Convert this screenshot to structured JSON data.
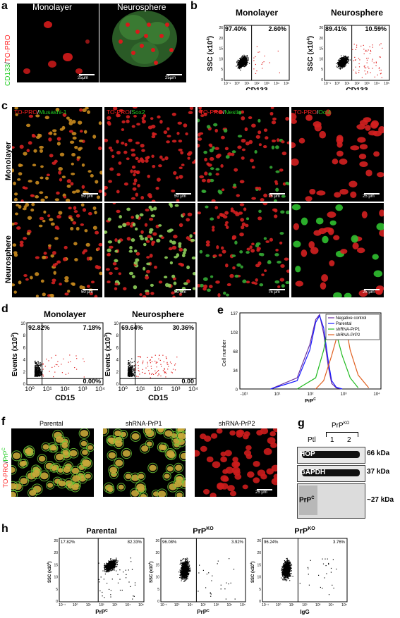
{
  "panel_labels": {
    "a": "a",
    "b": "b",
    "c": "c",
    "d": "d",
    "e": "e",
    "f": "f",
    "g": "g",
    "h": "h"
  },
  "panel_a": {
    "titles": [
      "Monolayer",
      "Neurosphere"
    ],
    "stain_green": "CD133",
    "stain_sep": "/",
    "stain_red": "TO-PRO",
    "scale_bars": [
      "25μm",
      "25μm"
    ]
  },
  "panel_b": {
    "ylabel_main": "SSC (x10",
    "ylabel_sup": "4",
    "ylabel_end": ")",
    "xlabel": "CD133",
    "plots": [
      {
        "title": "Monolayer",
        "left_pct": "97.40%",
        "right_pct": "2.60%"
      },
      {
        "title": "Neurosphere",
        "left_pct": "89.41%",
        "right_pct": "10.59%"
      }
    ],
    "yticks": [
      "26",
      "20",
      "15",
      "10",
      "5",
      "0"
    ],
    "xticks": [
      "10⁻¹",
      "10⁰",
      "10¹",
      "10²",
      "10³",
      "10⁴",
      "10⁵"
    ]
  },
  "panel_c": {
    "row_labels": [
      "Monolayer",
      "Neurosphere"
    ],
    "columns": [
      {
        "red": "TO-PRO",
        "sep": "/",
        "green": "Musashi-1",
        "bars": [
          "50 μm",
          "50 μm"
        ]
      },
      {
        "red": "TO-PRO",
        "sep": "/",
        "green": "Sox2",
        "bars": [
          "50 μm",
          "50 μm"
        ]
      },
      {
        "red": "TO-PRO",
        "sep": "/",
        "green": "Nestin",
        "bars": [
          "75 μm",
          "75 μm"
        ]
      },
      {
        "red": "TO-PRO",
        "sep": "/",
        "green": "Oct4",
        "bars": [
          "25 μm",
          "25 μm"
        ]
      }
    ]
  },
  "panel_d": {
    "ylabel_main": "Events (x10",
    "ylabel_sup": "3",
    "ylabel_end": ")",
    "xlabel": "CD15",
    "plots": [
      {
        "title": "Monolayer",
        "ul": "92.82%",
        "ur": "7.18%",
        "lr": "0.00%"
      },
      {
        "title": "Neurosphere",
        "ul": "69.64%",
        "ur": "30.36%",
        "lr": "0.00"
      }
    ],
    "yticks": [
      "10",
      "8",
      "6",
      "4",
      "2",
      "0"
    ],
    "xticks": [
      "10⁰",
      "10¹",
      "10²",
      "10³",
      "10⁴"
    ]
  },
  "panel_e": {
    "ylabel": "Cell number",
    "xlabel": "PrP",
    "xlabel_sup": "C",
    "yticks": [
      "137",
      "103",
      "68",
      "34",
      "0"
    ],
    "xticks": [
      "-10¹",
      "10¹",
      "10²",
      "10³",
      "10⁴"
    ],
    "legend": [
      "Negative control",
      "Parental",
      "shRNA-PrP1",
      "shRNA-PrP2"
    ],
    "colors": [
      "#6a2fa0",
      "#1a1aff",
      "#ff2020",
      "#22bb22",
      "#cc3333"
    ]
  },
  "panel_f": {
    "titles": [
      "Parental",
      "shRNA-PrP1",
      "shRNA-PrP2"
    ],
    "stain_red": "TO-PRO",
    "stain_sep": "/",
    "stain_green": "PrP",
    "stain_sup": "C",
    "scale_bar": "25 μm"
  },
  "panel_g": {
    "header": "PrP",
    "header_sup": "KO",
    "lanes": [
      "Ptl",
      "1",
      "2"
    ],
    "bands": [
      {
        "name": "HOP",
        "size": "66 kDa"
      },
      {
        "name": "GAPDH",
        "size": "37 kDa"
      },
      {
        "name": "PrP",
        "sup": "C",
        "size": "~27 kDa"
      }
    ]
  },
  "panel_h": {
    "ylabel_main": "SSC (x10",
    "ylabel_sup": "4",
    "ylabel_end": ")",
    "plots": [
      {
        "title": "Parental",
        "title_sup": "",
        "left_pct": "17.82%",
        "right_pct": "82.33%",
        "xlabel": "PrP",
        "xlabel_sup": "C"
      },
      {
        "title": "PrP",
        "title_sup": "KO",
        "left_pct": "96.08%",
        "right_pct": "3.92%",
        "xlabel": "PrP",
        "xlabel_sup": "C"
      },
      {
        "title": "PrP",
        "title_sup": "KO",
        "left_pct": "96.24%",
        "right_pct": "3.76%",
        "xlabel": "IgG",
        "xlabel_sup": ""
      }
    ],
    "yticks": [
      "26",
      "20",
      "15",
      "10",
      "5",
      "0"
    ],
    "xticks": [
      "10⁻¹",
      "10⁰",
      "10¹",
      "10²",
      "10³",
      "10⁴",
      "10⁵"
    ]
  },
  "chart_data": [
    {
      "type": "scatter",
      "panel": "b",
      "title": "Monolayer",
      "xlabel": "CD133",
      "ylabel": "SSC (x10^4)",
      "quadrant_percentages": {
        "left": 97.4,
        "right": 2.6
      },
      "ylim": [
        0,
        26
      ]
    },
    {
      "type": "scatter",
      "panel": "b",
      "title": "Neurosphere",
      "xlabel": "CD133",
      "ylabel": "SSC (x10^4)",
      "quadrant_percentages": {
        "left": 89.41,
        "right": 10.59
      },
      "ylim": [
        0,
        26
      ]
    },
    {
      "type": "scatter",
      "panel": "d",
      "title": "Monolayer",
      "xlabel": "CD15",
      "ylabel": "Events (x10^3)",
      "quadrant_percentages": {
        "upper_left": 92.82,
        "upper_right": 7.18,
        "lower_right": 0.0
      },
      "ylim": [
        0,
        10
      ]
    },
    {
      "type": "scatter",
      "panel": "d",
      "title": "Neurosphere",
      "xlabel": "CD15",
      "ylabel": "Events (x10^3)",
      "quadrant_percentages": {
        "upper_left": 69.64,
        "upper_right": 30.36,
        "lower_right": 0.0
      },
      "ylim": [
        0,
        10
      ]
    },
    {
      "type": "line",
      "panel": "e",
      "xlabel": "PrP^C",
      "ylabel": "Cell number",
      "ylim": [
        0,
        137
      ],
      "series": [
        {
          "name": "Negative control",
          "x": [
            -10,
            10,
            30,
            50,
            70,
            100,
            150,
            200,
            300,
            500
          ],
          "values": [
            0,
            20,
            80,
            125,
            134,
            100,
            40,
            10,
            2,
            0
          ]
        },
        {
          "name": "Parental",
          "x": [
            -10,
            10,
            30,
            50,
            70,
            100,
            150,
            200,
            300,
            500
          ],
          "values": [
            0,
            15,
            70,
            120,
            132,
            110,
            50,
            15,
            3,
            0
          ]
        },
        {
          "name": "shRNA-PrP1",
          "x": [
            10,
            50,
            100,
            150,
            200,
            300,
            500,
            1000,
            2000
          ],
          "values": [
            0,
            20,
            70,
            115,
            122,
            100,
            60,
            20,
            2
          ]
        },
        {
          "name": "shRNA-PrP2",
          "x": [
            50,
            100,
            200,
            300,
            500,
            800,
            1000,
            2000,
            5000
          ],
          "values": [
            0,
            15,
            60,
            90,
            110,
            95,
            70,
            25,
            2
          ]
        }
      ]
    },
    {
      "type": "scatter",
      "panel": "h",
      "title": "Parental",
      "xlabel": "PrP^C",
      "ylabel": "SSC (x10^4)",
      "quadrant_percentages": {
        "left": 17.82,
        "right": 82.33
      },
      "ylim": [
        0,
        26
      ]
    },
    {
      "type": "scatter",
      "panel": "h",
      "title": "PrP^KO",
      "xlabel": "PrP^C",
      "ylabel": "SSC (x10^4)",
      "quadrant_percentages": {
        "left": 96.08,
        "right": 3.92
      },
      "ylim": [
        0,
        26
      ]
    },
    {
      "type": "scatter",
      "panel": "h",
      "title": "PrP^KO",
      "xlabel": "IgG",
      "ylabel": "SSC (x10^4)",
      "quadrant_percentages": {
        "left": 96.24,
        "right": 3.76
      },
      "ylim": [
        0,
        26
      ]
    }
  ]
}
